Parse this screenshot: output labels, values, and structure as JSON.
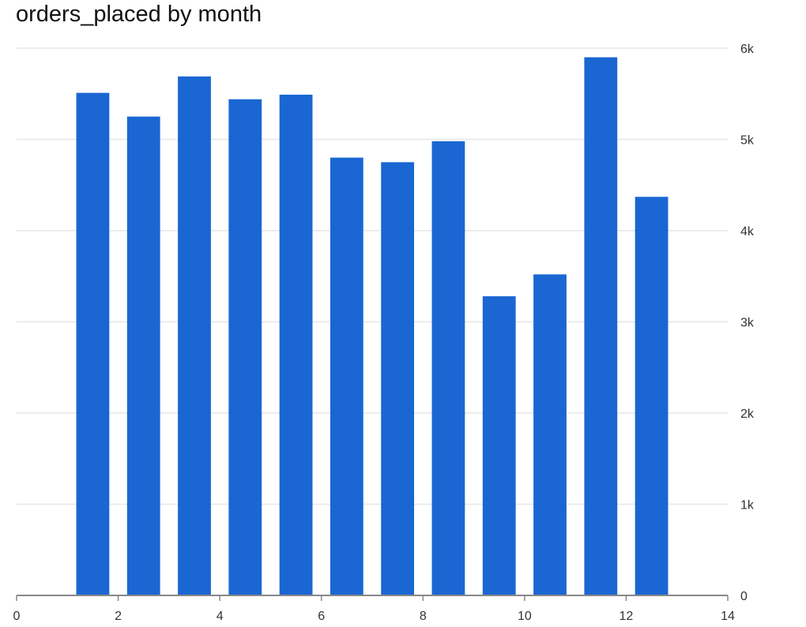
{
  "chart_data": {
    "type": "bar",
    "title": "orders_placed by month",
    "xlabel": "",
    "ylabel": "",
    "x": [
      1.5,
      2.5,
      3.5,
      4.5,
      5.5,
      6.5,
      7.5,
      8.5,
      9.5,
      10.5,
      11.5,
      12.5
    ],
    "values": [
      5510,
      5250,
      5690,
      5440,
      5490,
      4800,
      4750,
      4980,
      3280,
      3520,
      5900,
      4370
    ],
    "bar_width": 0.65,
    "xlim": [
      0,
      14
    ],
    "ylim": [
      0,
      6000
    ],
    "x_ticks": [
      0,
      2,
      4,
      6,
      8,
      10,
      12,
      14
    ],
    "x_tick_labels": [
      "0",
      "2",
      "4",
      "6",
      "8",
      "10",
      "12",
      "14"
    ],
    "y_ticks": [
      0,
      1000,
      2000,
      3000,
      4000,
      5000,
      6000
    ],
    "y_tick_labels": [
      "0",
      "1k",
      "2k",
      "3k",
      "4k",
      "5k",
      "6k"
    ],
    "y_axis_side": "right",
    "grid": true,
    "legend": "none",
    "colors": {
      "bar": "#1a66d2",
      "grid": "#e6e6e6",
      "axis": "#888888",
      "text": "#333333"
    }
  }
}
